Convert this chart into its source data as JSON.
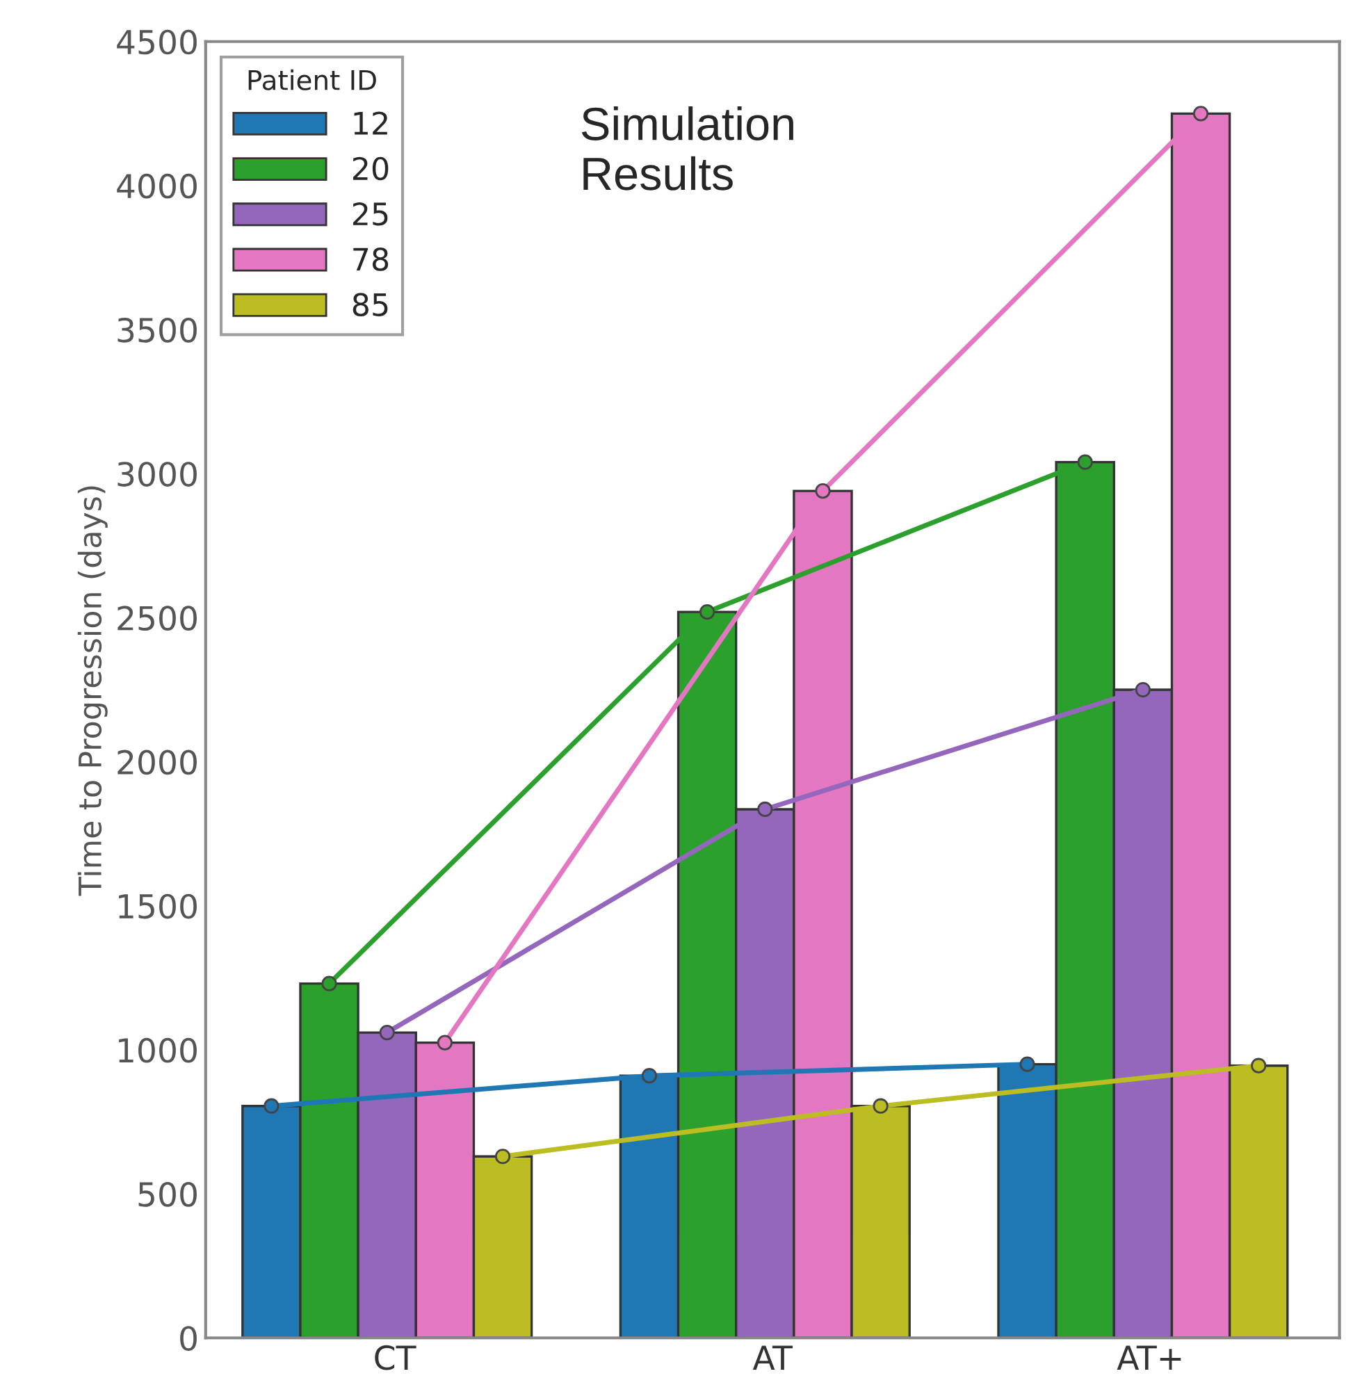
{
  "chart_data": {
    "type": "bar",
    "ylabel": "Time to Progression (days)",
    "legend_title": "Patient ID",
    "categories": [
      "CT",
      "AT",
      "AT+"
    ],
    "series": [
      {
        "name": "12",
        "color": "#1f77b4",
        "values": [
          805,
          910,
          950
        ]
      },
      {
        "name": "20",
        "color": "#2ca02c",
        "values": [
          1230,
          2520,
          3040
        ]
      },
      {
        "name": "25",
        "color": "#9467bd",
        "values": [
          1060,
          1835,
          2250
        ]
      },
      {
        "name": "78",
        "color": "#e377c2",
        "values": [
          1025,
          2940,
          4250
        ]
      },
      {
        "name": "85",
        "color": "#bcbd22",
        "values": [
          630,
          805,
          945
        ]
      },
      {
        "type": "line",
        "color": "#1f77b4",
        "values": [
          805,
          910,
          950
        ]
      },
      {
        "type": "line",
        "color": "#2ca02c",
        "values": [
          1230,
          2520,
          3040
        ]
      },
      {
        "type": "line",
        "color": "#9467bd",
        "values": [
          1060,
          1835,
          2250
        ]
      },
      {
        "type": "line",
        "color": "#e377c2",
        "values": [
          1025,
          2940,
          4250
        ]
      },
      {
        "type": "line",
        "color": "#bcbd22",
        "values": [
          630,
          805,
          945
        ]
      }
    ],
    "ylim": [
      0,
      4500
    ],
    "yticks": [
      0,
      500,
      1000,
      1500,
      2000,
      2500,
      3000,
      3500,
      4000,
      4500
    ],
    "annotations": [
      "Simulation\nResults"
    ],
    "legend": "top left",
    "grid": false,
    "marker": "circle",
    "line_style": "solid"
  }
}
